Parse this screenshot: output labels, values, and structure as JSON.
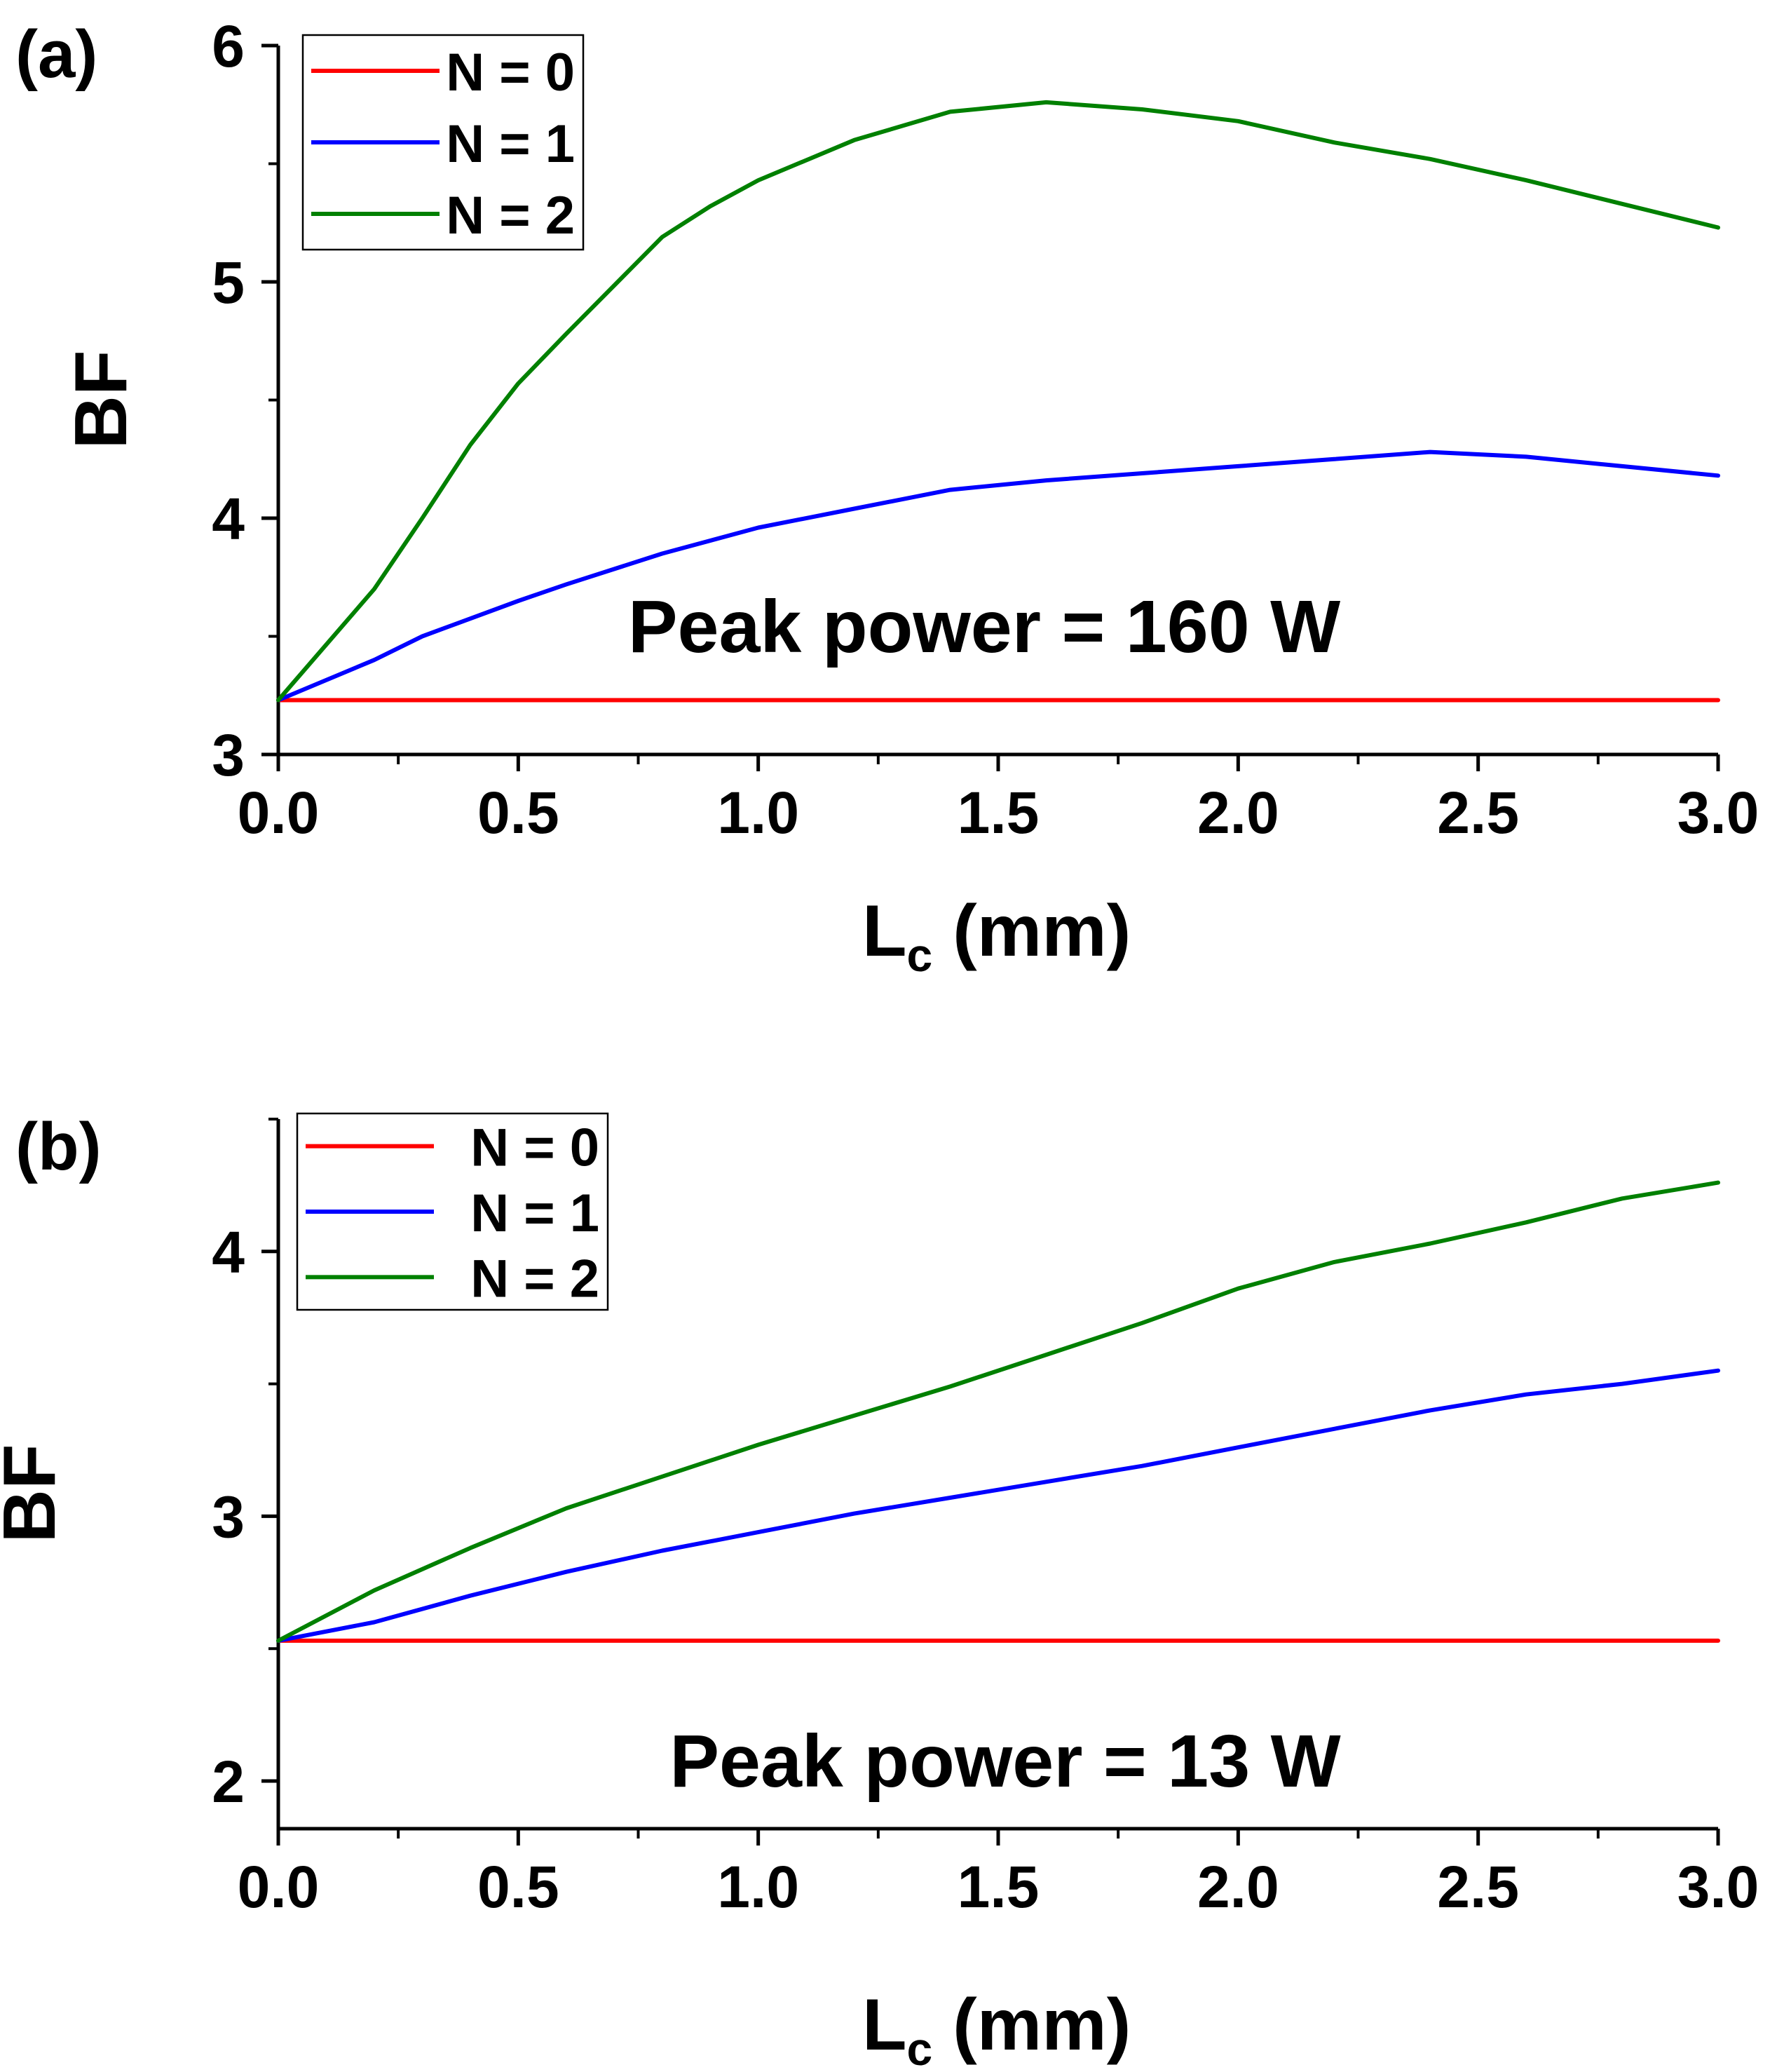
{
  "chart_data": [
    {
      "type": "line",
      "panel_label": "(a)",
      "title": "",
      "xlabel_main": "L",
      "xlabel_sub": "c",
      "xlabel_unit": " (mm)",
      "ylabel": "BF",
      "xlim": [
        0,
        3.0
      ],
      "ylim": [
        3,
        6
      ],
      "xticks": [
        0,
        0.5,
        1.0,
        1.5,
        2.0,
        2.5,
        3.0
      ],
      "xtick_labels": [
        "0.0",
        "0.5",
        "1.0",
        "1.5",
        "2.0",
        "2.5",
        "3.0"
      ],
      "xminor": [
        0.25,
        0.75,
        1.25,
        1.75,
        2.25,
        2.75
      ],
      "yticks": [
        3,
        4,
        5,
        6
      ],
      "ytick_labels": [
        "3",
        "4",
        "5",
        "6"
      ],
      "yminor": [
        3.5,
        4.5,
        5.5
      ],
      "annotation": "Peak power = 160 W",
      "legend_position": "top-left",
      "series": [
        {
          "name": "N = 0",
          "color": "#ff0000",
          "x": [
            0,
            3.0
          ],
          "y": [
            3.23,
            3.23
          ]
        },
        {
          "name": "N = 1",
          "color": "#0000ff",
          "x": [
            0,
            0.2,
            0.3,
            0.5,
            0.6,
            0.8,
            1.0,
            1.2,
            1.4,
            1.6,
            1.8,
            2.0,
            2.2,
            2.4,
            2.6,
            2.8,
            3.0
          ],
          "y": [
            3.23,
            3.4,
            3.5,
            3.65,
            3.72,
            3.85,
            3.96,
            4.04,
            4.12,
            4.16,
            4.19,
            4.22,
            4.25,
            4.28,
            4.26,
            4.22,
            4.18
          ]
        },
        {
          "name": "N = 2",
          "color": "#008000",
          "x": [
            0,
            0.2,
            0.3,
            0.4,
            0.5,
            0.6,
            0.8,
            0.9,
            1.0,
            1.2,
            1.4,
            1.6,
            1.8,
            2.0,
            2.2,
            2.4,
            2.6,
            2.8,
            3.0
          ],
          "y": [
            3.23,
            3.7,
            4.0,
            4.31,
            4.57,
            4.78,
            5.19,
            5.32,
            5.43,
            5.6,
            5.72,
            5.76,
            5.73,
            5.68,
            5.59,
            5.52,
            5.43,
            5.33,
            5.23
          ]
        }
      ]
    },
    {
      "type": "line",
      "panel_label": "(b)",
      "title": "",
      "xlabel_main": "L",
      "xlabel_sub": "c",
      "xlabel_unit": " (mm)",
      "ylabel": "BF",
      "xlim": [
        0,
        3.0
      ],
      "ylim": [
        1.82,
        4.5
      ],
      "xticks": [
        0,
        0.5,
        1.0,
        1.5,
        2.0,
        2.5,
        3.0
      ],
      "xtick_labels": [
        "0.0",
        "0.5",
        "1.0",
        "1.5",
        "2.0",
        "2.5",
        "3.0"
      ],
      "xminor": [
        0.25,
        0.75,
        1.25,
        1.75,
        2.25,
        2.75
      ],
      "yticks": [
        2,
        3,
        4
      ],
      "ytick_labels": [
        "2",
        "3",
        "4"
      ],
      "yminor": [
        2.5,
        3.5,
        4.5
      ],
      "annotation": "Peak power = 13 W",
      "legend_position": "top-left",
      "series": [
        {
          "name": "N = 0",
          "color": "#ff0000",
          "x": [
            0,
            3.0
          ],
          "y": [
            2.53,
            2.53
          ]
        },
        {
          "name": "N = 1",
          "color": "#0000ff",
          "x": [
            0,
            0.2,
            0.4,
            0.6,
            0.8,
            1.0,
            1.2,
            1.4,
            1.6,
            1.8,
            2.0,
            2.2,
            2.4,
            2.6,
            2.8,
            3.0
          ],
          "y": [
            2.53,
            2.6,
            2.7,
            2.79,
            2.87,
            2.94,
            3.01,
            3.07,
            3.13,
            3.19,
            3.26,
            3.33,
            3.4,
            3.46,
            3.5,
            3.55
          ]
        },
        {
          "name": "N = 2",
          "color": "#008000",
          "x": [
            0,
            0.2,
            0.4,
            0.6,
            0.8,
            1.0,
            1.2,
            1.4,
            1.6,
            1.8,
            2.0,
            2.2,
            2.4,
            2.6,
            2.8,
            3.0
          ],
          "y": [
            2.53,
            2.72,
            2.88,
            3.03,
            3.15,
            3.27,
            3.38,
            3.49,
            3.61,
            3.73,
            3.86,
            3.96,
            4.03,
            4.11,
            4.2,
            4.26
          ]
        }
      ]
    }
  ]
}
